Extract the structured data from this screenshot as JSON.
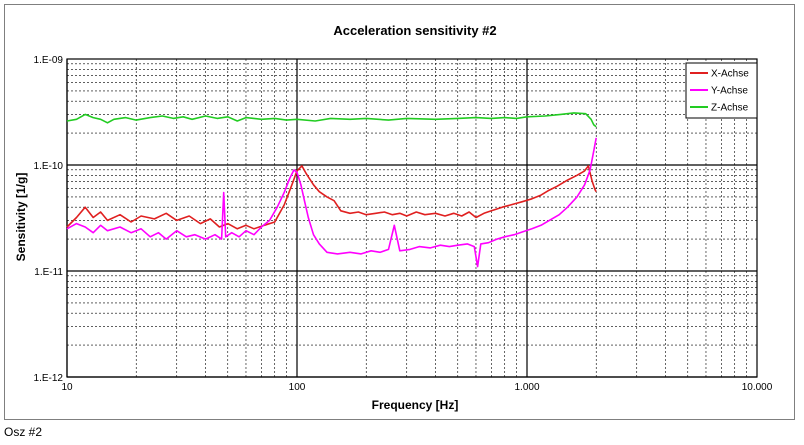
{
  "caption": "Osz #2",
  "chart_data": {
    "type": "line",
    "title": "Acceleration sensitivity #2",
    "xlabel": "Frequency [Hz]",
    "ylabel": "Sensitivity [1/g]",
    "xscale": "log",
    "yscale": "log",
    "xlim": [
      10,
      10000
    ],
    "ylim": [
      1e-12,
      1e-09
    ],
    "grid": true,
    "legend_position": "top-right",
    "x_ticks": [
      {
        "value": 10,
        "label": "10"
      },
      {
        "value": 100,
        "label": "100"
      },
      {
        "value": 1000,
        "label": "1.000"
      },
      {
        "value": 10000,
        "label": "10.000"
      }
    ],
    "y_ticks": [
      {
        "value": 1e-09,
        "label": "1.E-09"
      },
      {
        "value": 1e-10,
        "label": "1.E-10"
      },
      {
        "value": 1e-11,
        "label": "1.E-11"
      },
      {
        "value": 1e-12,
        "label": "1.E-12"
      }
    ],
    "series": [
      {
        "name": "X-Achse",
        "color": "#e02020",
        "points": [
          [
            10,
            2.6e-11
          ],
          [
            11,
            3.2e-11
          ],
          [
            12,
            4e-11
          ],
          [
            13,
            3.2e-11
          ],
          [
            14,
            3.6e-11
          ],
          [
            15,
            3e-11
          ],
          [
            17,
            3.4e-11
          ],
          [
            19,
            2.9e-11
          ],
          [
            21,
            3.3e-11
          ],
          [
            24,
            3.1e-11
          ],
          [
            27,
            3.5e-11
          ],
          [
            30,
            3e-11
          ],
          [
            34,
            3.3e-11
          ],
          [
            38,
            2.8e-11
          ],
          [
            42,
            3.1e-11
          ],
          [
            46,
            2.6e-11
          ],
          [
            50,
            2.8e-11
          ],
          [
            55,
            2.5e-11
          ],
          [
            60,
            2.7e-11
          ],
          [
            65,
            2.5e-11
          ],
          [
            72,
            2.7e-11
          ],
          [
            80,
            2.9e-11
          ],
          [
            88,
            4.2e-11
          ],
          [
            95,
            6.5e-11
          ],
          [
            100,
            8.8e-11
          ],
          [
            105,
            9.8e-11
          ],
          [
            110,
            8.2e-11
          ],
          [
            118,
            6.5e-11
          ],
          [
            125,
            5.6e-11
          ],
          [
            135,
            5e-11
          ],
          [
            145,
            4.6e-11
          ],
          [
            155,
            3.7e-11
          ],
          [
            170,
            3.5e-11
          ],
          [
            185,
            3.6e-11
          ],
          [
            200,
            3.4e-11
          ],
          [
            220,
            3.5e-11
          ],
          [
            240,
            3.6e-11
          ],
          [
            260,
            3.4e-11
          ],
          [
            280,
            3.5e-11
          ],
          [
            300,
            3.3e-11
          ],
          [
            330,
            3.6e-11
          ],
          [
            360,
            3.4e-11
          ],
          [
            400,
            3.5e-11
          ],
          [
            440,
            3.3e-11
          ],
          [
            480,
            3.5e-11
          ],
          [
            520,
            3.3e-11
          ],
          [
            560,
            3.6e-11
          ],
          [
            600,
            3.2e-11
          ],
          [
            650,
            3.5e-11
          ],
          [
            700,
            3.7e-11
          ],
          [
            780,
            4e-11
          ],
          [
            850,
            4.2e-11
          ],
          [
            950,
            4.5e-11
          ],
          [
            1050,
            4.8e-11
          ],
          [
            1150,
            5.2e-11
          ],
          [
            1250,
            5.8e-11
          ],
          [
            1350,
            6.3e-11
          ],
          [
            1500,
            7.2e-11
          ],
          [
            1650,
            8e-11
          ],
          [
            1780,
            8.8e-11
          ],
          [
            1850,
            9.8e-11
          ],
          [
            1920,
            7e-11
          ],
          [
            1980,
            5.8e-11
          ],
          [
            2000,
            5.6e-11
          ]
        ]
      },
      {
        "name": "Y-Achse",
        "color": "#ff00ff",
        "points": [
          [
            10,
            2.5e-11
          ],
          [
            11,
            2.8e-11
          ],
          [
            12,
            2.6e-11
          ],
          [
            13,
            2.3e-11
          ],
          [
            14,
            2.7e-11
          ],
          [
            15,
            2.4e-11
          ],
          [
            17,
            2.6e-11
          ],
          [
            19,
            2.3e-11
          ],
          [
            21,
            2.5e-11
          ],
          [
            23,
            2.1e-11
          ],
          [
            25,
            2.3e-11
          ],
          [
            27,
            2e-11
          ],
          [
            30,
            2.4e-11
          ],
          [
            33,
            2.1e-11
          ],
          [
            36,
            2.2e-11
          ],
          [
            40,
            2e-11
          ],
          [
            44,
            2.2e-11
          ],
          [
            47,
            2e-11
          ],
          [
            48,
            5.5e-11
          ],
          [
            49,
            2.1e-11
          ],
          [
            52,
            2.3e-11
          ],
          [
            56,
            2.1e-11
          ],
          [
            60,
            2.4e-11
          ],
          [
            65,
            2.2e-11
          ],
          [
            70,
            2.6e-11
          ],
          [
            76,
            3e-11
          ],
          [
            82,
            4e-11
          ],
          [
            88,
            5.5e-11
          ],
          [
            93,
            7.5e-11
          ],
          [
            97,
            9e-11
          ],
          [
            100,
            8.5e-11
          ],
          [
            104,
            6.5e-11
          ],
          [
            108,
            4.5e-11
          ],
          [
            112,
            3.2e-11
          ],
          [
            118,
            2.2e-11
          ],
          [
            125,
            1.8e-11
          ],
          [
            135,
            1.5e-11
          ],
          [
            150,
            1.45e-11
          ],
          [
            170,
            1.5e-11
          ],
          [
            190,
            1.45e-11
          ],
          [
            210,
            1.55e-11
          ],
          [
            230,
            1.5e-11
          ],
          [
            250,
            1.6e-11
          ],
          [
            265,
            2.7e-11
          ],
          [
            280,
            1.55e-11
          ],
          [
            310,
            1.6e-11
          ],
          [
            340,
            1.7e-11
          ],
          [
            380,
            1.65e-11
          ],
          [
            420,
            1.75e-11
          ],
          [
            460,
            1.7e-11
          ],
          [
            500,
            1.75e-11
          ],
          [
            550,
            1.8e-11
          ],
          [
            590,
            1.7e-11
          ],
          [
            610,
            1.1e-11
          ],
          [
            630,
            1.8e-11
          ],
          [
            680,
            1.85e-11
          ],
          [
            740,
            2e-11
          ],
          [
            800,
            2.1e-11
          ],
          [
            880,
            2.2e-11
          ],
          [
            960,
            2.35e-11
          ],
          [
            1050,
            2.5e-11
          ],
          [
            1150,
            2.7e-11
          ],
          [
            1250,
            3e-11
          ],
          [
            1380,
            3.4e-11
          ],
          [
            1500,
            4e-11
          ],
          [
            1650,
            5e-11
          ],
          [
            1780,
            6.5e-11
          ],
          [
            1880,
            9e-11
          ],
          [
            1950,
            1.35e-10
          ],
          [
            2000,
            1.8e-10
          ]
        ]
      },
      {
        "name": "Z-Achse",
        "color": "#22cc22",
        "points": [
          [
            10,
            2.6e-10
          ],
          [
            11,
            2.7e-10
          ],
          [
            12,
            3e-10
          ],
          [
            13,
            2.8e-10
          ],
          [
            14,
            2.7e-10
          ],
          [
            15,
            2.5e-10
          ],
          [
            16,
            2.7e-10
          ],
          [
            18,
            2.8e-10
          ],
          [
            20,
            2.65e-10
          ],
          [
            23,
            2.8e-10
          ],
          [
            26,
            2.9e-10
          ],
          [
            29,
            2.75e-10
          ],
          [
            32,
            2.85e-10
          ],
          [
            35,
            2.7e-10
          ],
          [
            40,
            2.9e-10
          ],
          [
            45,
            2.75e-10
          ],
          [
            50,
            2.85e-10
          ],
          [
            55,
            2.6e-10
          ],
          [
            60,
            2.8e-10
          ],
          [
            70,
            2.7e-10
          ],
          [
            80,
            2.75e-10
          ],
          [
            90,
            2.65e-10
          ],
          [
            100,
            2.7e-10
          ],
          [
            120,
            2.6e-10
          ],
          [
            140,
            2.75e-10
          ],
          [
            170,
            2.7e-10
          ],
          [
            200,
            2.75e-10
          ],
          [
            250,
            2.65e-10
          ],
          [
            300,
            2.75e-10
          ],
          [
            400,
            2.7e-10
          ],
          [
            500,
            2.75e-10
          ],
          [
            600,
            2.8e-10
          ],
          [
            700,
            2.75e-10
          ],
          [
            800,
            2.8e-10
          ],
          [
            900,
            2.75e-10
          ],
          [
            1000,
            2.85e-10
          ],
          [
            1200,
            2.9e-10
          ],
          [
            1400,
            3e-10
          ],
          [
            1600,
            3.1e-10
          ],
          [
            1800,
            3.05e-10
          ],
          [
            1900,
            2.7e-10
          ],
          [
            1950,
            2.4e-10
          ],
          [
            2000,
            2.3e-10
          ]
        ]
      }
    ]
  }
}
